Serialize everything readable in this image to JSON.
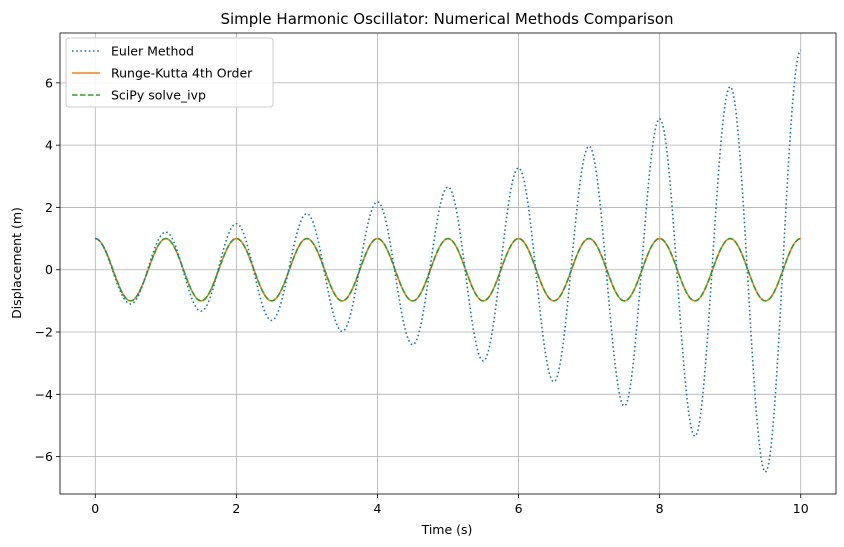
{
  "chart_data": {
    "type": "line",
    "title": "Simple Harmonic Oscillator: Numerical Methods Comparison",
    "xlabel": "Time (s)",
    "ylabel": "Displacement (m)",
    "xlim": [
      -0.5,
      10.5
    ],
    "ylim": [
      -7.2,
      7.6
    ],
    "x_ticks": [
      0,
      2,
      4,
      6,
      8,
      10
    ],
    "y_ticks": [
      -6,
      -4,
      -2,
      0,
      2,
      4,
      6
    ],
    "x_tick_labels": [
      "0",
      "2",
      "4",
      "6",
      "8",
      "10"
    ],
    "y_tick_labels": [
      "−6",
      "−4",
      "−2",
      "0",
      "2",
      "4",
      "6"
    ],
    "grid": true,
    "legend_position": "upper-left",
    "series": [
      {
        "name": "Euler Method",
        "color": "#1f77b4",
        "style": "dotted",
        "x": [
          0,
          0.5,
          1,
          1.5,
          2,
          2.5,
          3,
          3.5,
          4,
          4.5,
          5,
          5.5,
          6,
          6.5,
          7,
          7.5,
          8,
          8.5,
          9,
          9.5,
          10
        ],
        "y": [
          1.0,
          -1.1,
          1.21,
          -1.33,
          1.48,
          -1.63,
          1.8,
          -1.98,
          2.18,
          -2.41,
          2.66,
          -2.93,
          3.27,
          -3.6,
          3.97,
          -4.38,
          4.85,
          -5.35,
          5.88,
          -6.5,
          7.05
        ]
      },
      {
        "name": "Runge-Kutta 4th Order",
        "color": "#ff7f0e",
        "style": "solid",
        "x": [
          0,
          0.5,
          1,
          1.5,
          2,
          2.5,
          3,
          3.5,
          4,
          4.5,
          5,
          5.5,
          6,
          6.5,
          7,
          7.5,
          8,
          8.5,
          9,
          9.5,
          10
        ],
        "y": [
          1,
          -1,
          1,
          -1,
          1,
          -1,
          1,
          -1,
          1,
          -1,
          1,
          -1,
          1,
          -1,
          1,
          -1,
          1,
          -1,
          1,
          -1,
          1
        ]
      },
      {
        "name": "SciPy solve_ivp",
        "color": "#2ca02c",
        "style": "dashed",
        "x": [
          0,
          0.5,
          1,
          1.5,
          2,
          2.5,
          3,
          3.5,
          4,
          4.5,
          5,
          5.5,
          6,
          6.5,
          7,
          7.5,
          8,
          8.5,
          9,
          9.5,
          10
        ],
        "y": [
          1,
          -1,
          1,
          -1,
          1,
          -1,
          1,
          -1,
          1,
          -1,
          1,
          -1,
          1,
          -1,
          1,
          -1,
          1,
          -1,
          1,
          -1,
          1
        ]
      }
    ]
  }
}
